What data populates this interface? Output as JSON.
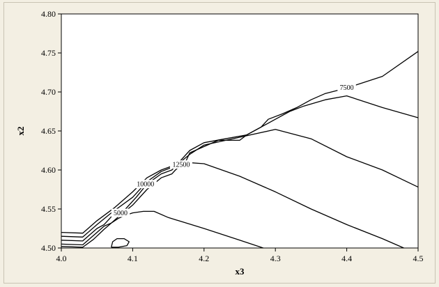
{
  "chart_data": {
    "type": "contour",
    "title": "",
    "xlabel": "x3",
    "ylabel": "x2",
    "xlim": [
      4.0,
      4.5
    ],
    "ylim": [
      4.5,
      4.8
    ],
    "x_ticks": [
      "4.0",
      "4.1",
      "4.2",
      "4.3",
      "4.4",
      "4.5"
    ],
    "y_ticks": [
      "4.50",
      "4.55",
      "4.60",
      "4.65",
      "4.70",
      "4.75",
      "4.80"
    ],
    "grid": false,
    "legend": "none",
    "colors": {
      "line": "#000000",
      "frame": "#f3efe3",
      "plot_bg": "#ffffff"
    },
    "series": [
      {
        "label": "",
        "points": [
          [
            4.0,
            4.502
          ],
          [
            4.03,
            4.501
          ],
          [
            4.045,
            4.511
          ],
          [
            4.06,
            4.524
          ],
          [
            4.07,
            4.532
          ],
          [
            4.08,
            4.538
          ],
          [
            4.09,
            4.542
          ],
          [
            4.1,
            4.545
          ],
          [
            4.115,
            4.547
          ],
          [
            4.13,
            4.547
          ],
          [
            4.15,
            4.539
          ],
          [
            4.2,
            4.525
          ],
          [
            4.25,
            4.51
          ],
          [
            4.283,
            4.5
          ]
        ]
      },
      {
        "label": "",
        "points": [
          [
            4.07,
            4.501
          ],
          [
            4.072,
            4.508
          ],
          [
            4.078,
            4.512
          ],
          [
            4.088,
            4.512
          ],
          [
            4.095,
            4.508
          ],
          [
            4.092,
            4.503
          ],
          [
            4.08,
            4.501
          ],
          [
            4.07,
            4.501
          ]
        ]
      },
      {
        "label": "5000",
        "points": [
          [
            4.0,
            4.505
          ],
          [
            4.03,
            4.504
          ],
          [
            4.05,
            4.52
          ],
          [
            4.06,
            4.528
          ],
          [
            4.07,
            4.532
          ],
          [
            4.08,
            4.54
          ],
          [
            4.1,
            4.555
          ],
          [
            4.12,
            4.575
          ],
          [
            4.14,
            4.59
          ],
          [
            4.155,
            4.595
          ],
          [
            4.16,
            4.6
          ],
          [
            4.175,
            4.612
          ],
          [
            4.18,
            4.622
          ],
          [
            4.2,
            4.63
          ],
          [
            4.22,
            4.638
          ],
          [
            4.25,
            4.638
          ],
          [
            4.26,
            4.645
          ],
          [
            4.28,
            4.655
          ],
          [
            4.29,
            4.665
          ],
          [
            4.31,
            4.672
          ],
          [
            4.33,
            4.68
          ],
          [
            4.35,
            4.69
          ],
          [
            4.37,
            4.698
          ],
          [
            4.4,
            4.705
          ],
          [
            4.45,
            4.72
          ],
          [
            4.5,
            4.752
          ]
        ]
      },
      {
        "label": "7500",
        "points": [
          [
            4.0,
            4.51
          ],
          [
            4.03,
            4.509
          ],
          [
            4.05,
            4.525
          ],
          [
            4.06,
            4.53
          ],
          [
            4.07,
            4.54
          ],
          [
            4.09,
            4.55
          ],
          [
            4.105,
            4.565
          ],
          [
            4.12,
            4.582
          ],
          [
            4.14,
            4.595
          ],
          [
            4.155,
            4.6
          ],
          [
            4.165,
            4.61
          ],
          [
            4.18,
            4.625
          ],
          [
            4.2,
            4.635
          ],
          [
            4.23,
            4.64
          ],
          [
            4.26,
            4.645
          ],
          [
            4.28,
            4.655
          ],
          [
            4.3,
            4.665
          ],
          [
            4.32,
            4.675
          ],
          [
            4.34,
            4.682
          ],
          [
            4.37,
            4.69
          ],
          [
            4.4,
            4.695
          ],
          [
            4.45,
            4.68
          ],
          [
            4.5,
            4.667
          ]
        ]
      },
      {
        "label": "10000",
        "points": [
          [
            4.0,
            4.515
          ],
          [
            4.03,
            4.514
          ],
          [
            4.05,
            4.53
          ],
          [
            4.07,
            4.545
          ],
          [
            4.1,
            4.565
          ],
          [
            4.12,
            4.585
          ],
          [
            4.14,
            4.598
          ],
          [
            4.16,
            4.605
          ],
          [
            4.18,
            4.62
          ],
          [
            4.2,
            4.632
          ],
          [
            4.25,
            4.642
          ],
          [
            4.3,
            4.652
          ],
          [
            4.35,
            4.64
          ],
          [
            4.4,
            4.617
          ],
          [
            4.45,
            4.6
          ],
          [
            4.5,
            4.578
          ]
        ]
      },
      {
        "label": "12500",
        "points": [
          [
            4.0,
            4.52
          ],
          [
            4.03,
            4.519
          ],
          [
            4.05,
            4.535
          ],
          [
            4.075,
            4.552
          ],
          [
            4.1,
            4.572
          ],
          [
            4.12,
            4.59
          ],
          [
            4.14,
            4.6
          ],
          [
            4.17,
            4.61
          ],
          [
            4.2,
            4.608
          ],
          [
            4.25,
            4.592
          ],
          [
            4.3,
            4.572
          ],
          [
            4.35,
            4.55
          ],
          [
            4.4,
            4.53
          ],
          [
            4.45,
            4.512
          ],
          [
            4.48,
            4.5
          ]
        ]
      }
    ],
    "labels": [
      {
        "text": "5000",
        "x": 4.083,
        "y": 4.545
      },
      {
        "text": "10000",
        "x": 4.118,
        "y": 4.582
      },
      {
        "text": "12500",
        "x": 4.168,
        "y": 4.607
      },
      {
        "text": "7500",
        "x": 4.4,
        "y": 4.706
      }
    ]
  }
}
